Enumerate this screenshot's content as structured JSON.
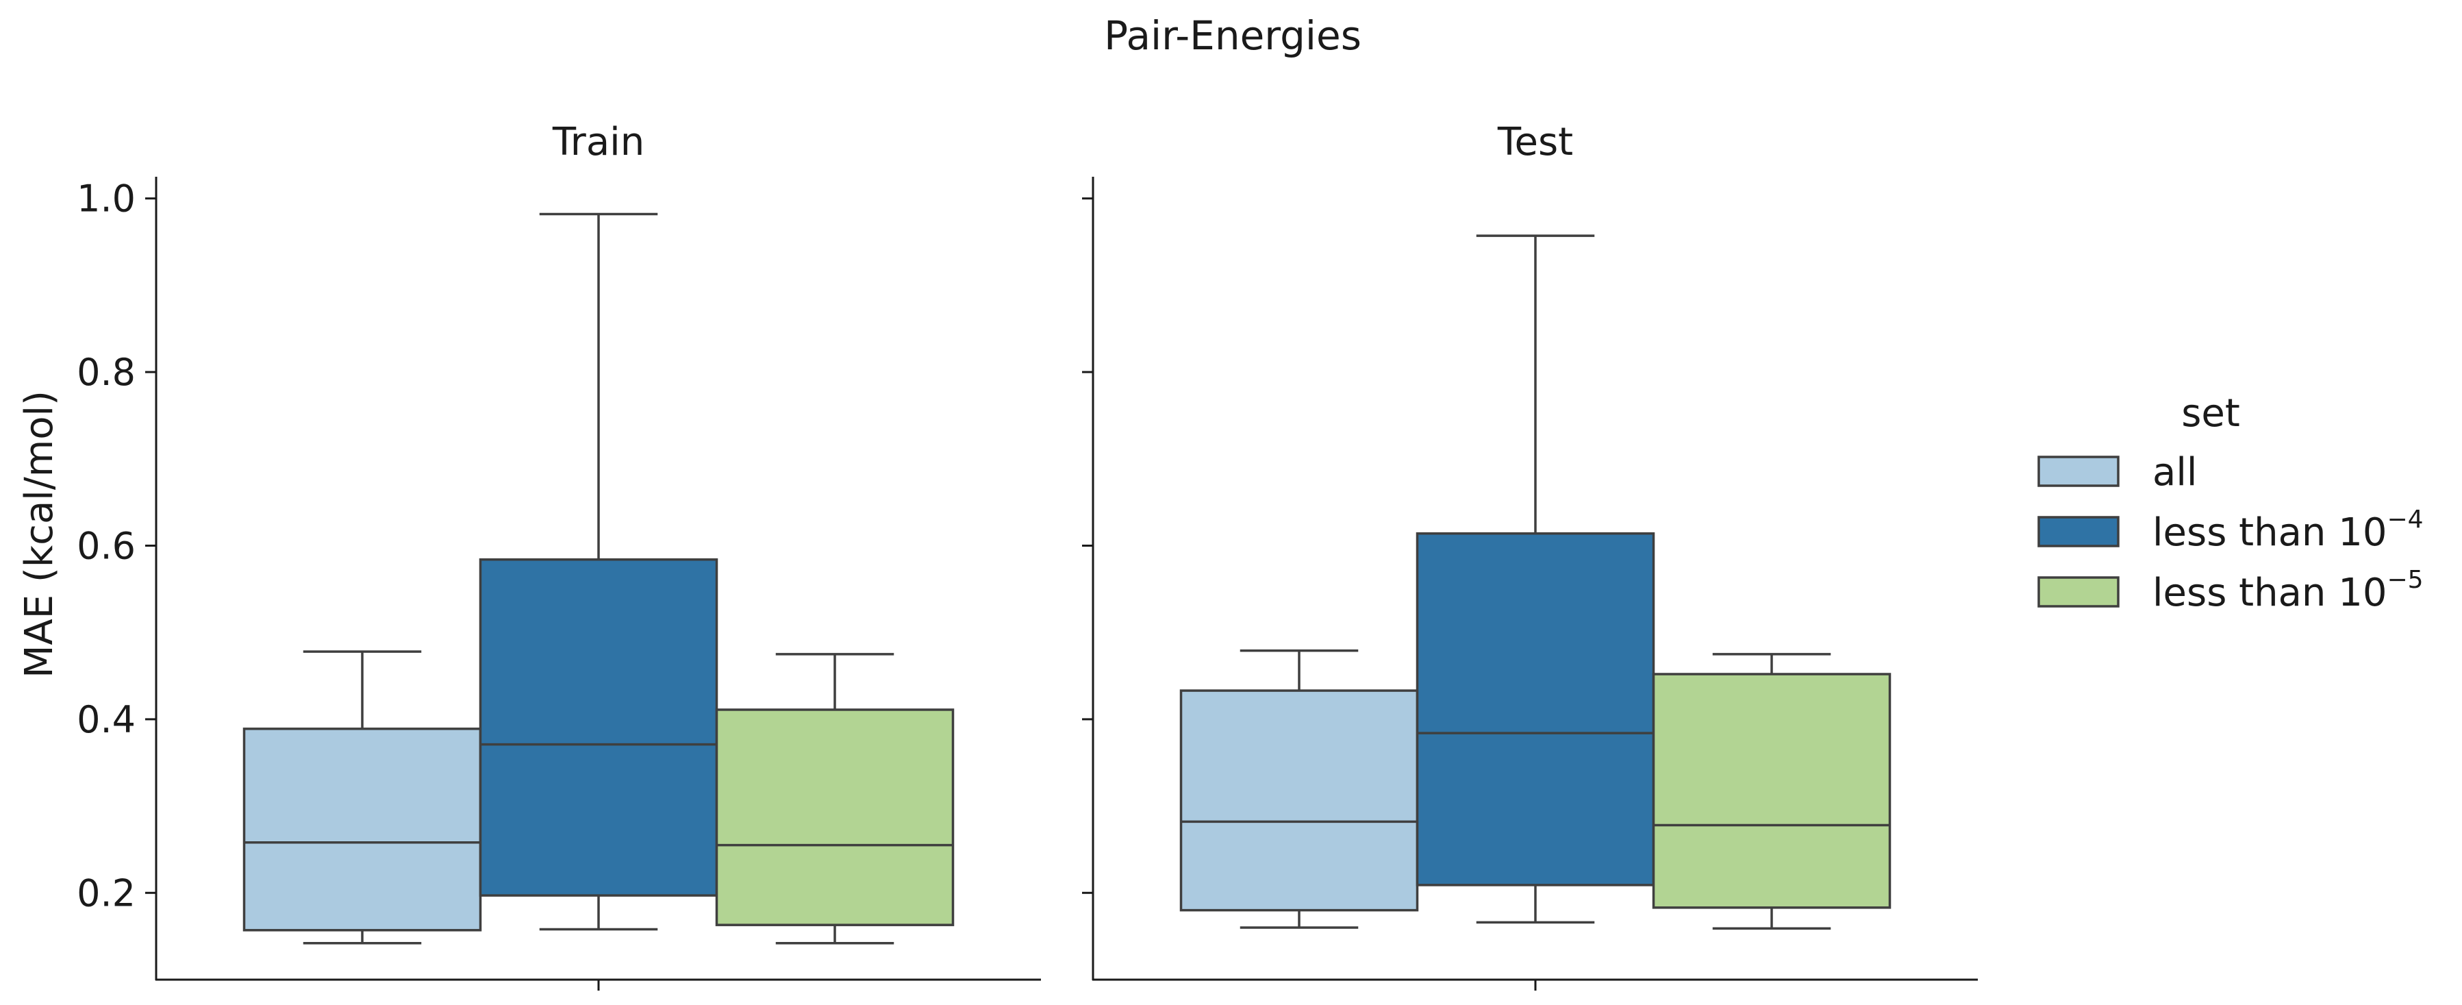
{
  "chart_data": {
    "type": "boxplot",
    "title": "Pair-Energies",
    "ylabel": "MAE (kcal/mol)",
    "ylim": [
      0.1,
      1.025
    ],
    "yticks": [
      "0.2",
      "0.4",
      "0.6",
      "0.8",
      "1.0"
    ],
    "legend": {
      "title": "set",
      "placement": "right",
      "entries": [
        {
          "base": "all",
          "exp": "",
          "color": "#abcae0"
        },
        {
          "base": "less than 10",
          "exp": "−4",
          "color": "#2f73a5"
        },
        {
          "base": "less than 10",
          "exp": "−5",
          "color": "#b2d493"
        }
      ]
    },
    "panels": [
      {
        "title": "Train",
        "boxes": [
          {
            "name": "all",
            "color": "#abcae0",
            "whislo": 0.142,
            "q1": 0.157,
            "med": 0.258,
            "q3": 0.389,
            "whishi": 0.478
          },
          {
            "name": "less than 10^-4",
            "color": "#2f73a5",
            "whislo": 0.158,
            "q1": 0.197,
            "med": 0.371,
            "q3": 0.584,
            "whishi": 0.982
          },
          {
            "name": "less than 10^-5",
            "color": "#b2d493",
            "whislo": 0.142,
            "q1": 0.163,
            "med": 0.255,
            "q3": 0.411,
            "whishi": 0.475
          }
        ]
      },
      {
        "title": "Test",
        "boxes": [
          {
            "name": "all",
            "color": "#abcae0",
            "whislo": 0.16,
            "q1": 0.18,
            "med": 0.282,
            "q3": 0.433,
            "whishi": 0.479
          },
          {
            "name": "less than 10^-4",
            "color": "#2f73a5",
            "whislo": 0.166,
            "q1": 0.209,
            "med": 0.384,
            "q3": 0.614,
            "whishi": 0.957
          },
          {
            "name": "less than 10^-5",
            "color": "#b2d493",
            "whislo": 0.159,
            "q1": 0.183,
            "med": 0.278,
            "q3": 0.452,
            "whishi": 0.475
          }
        ]
      }
    ]
  }
}
